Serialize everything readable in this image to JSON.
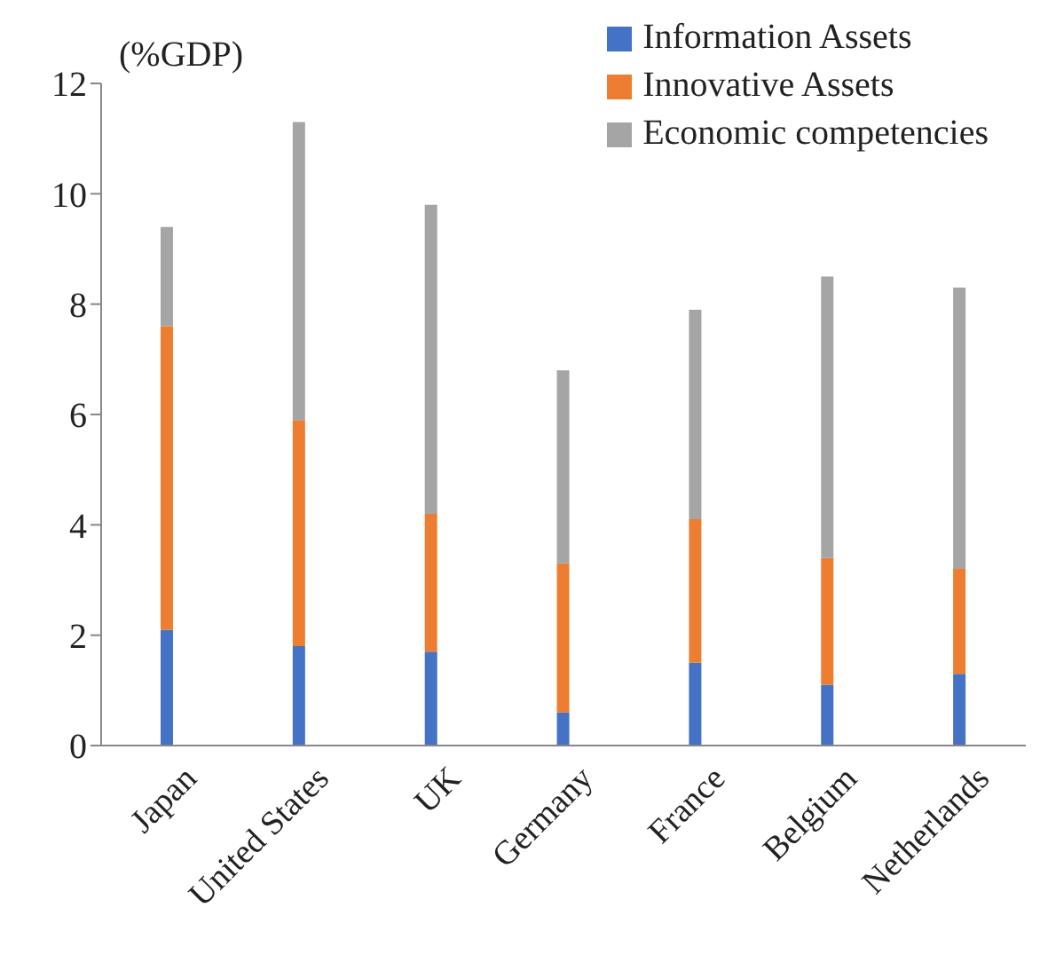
{
  "chart_data": {
    "type": "bar",
    "stacked": true,
    "ylabel": "(%GDP)",
    "categories": [
      "Japan",
      "United States",
      "UK",
      "Germany",
      "France",
      "Belgium",
      "Netherlands"
    ],
    "series": [
      {
        "name": "Information Assets",
        "color": "#4472c4",
        "values": [
          2.1,
          1.8,
          1.7,
          0.6,
          1.5,
          1.1,
          1.3
        ]
      },
      {
        "name": "Innovative Assets",
        "color": "#ed7d31",
        "values": [
          5.5,
          4.1,
          2.5,
          2.7,
          2.6,
          2.3,
          1.9
        ]
      },
      {
        "name": "Economic competencies",
        "color": "#a5a5a5",
        "values": [
          1.8,
          5.4,
          5.6,
          3.5,
          3.8,
          5.1,
          5.1
        ]
      }
    ],
    "ylim": [
      0,
      12
    ],
    "yticks": [
      0,
      2,
      4,
      6,
      8,
      10,
      12
    ],
    "grid": false,
    "legend": "top right"
  }
}
